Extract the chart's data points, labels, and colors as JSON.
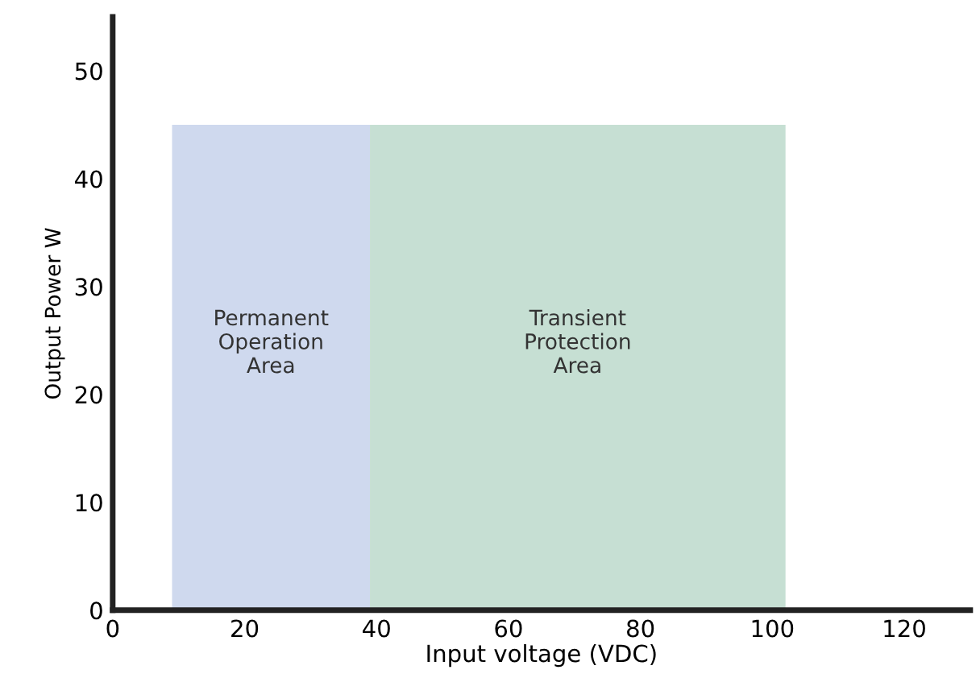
{
  "chart_data": {
    "type": "area",
    "xlabel": "Input voltage (VDC)",
    "ylabel": "Output Power W",
    "xlim": [
      0,
      130
    ],
    "xticks": [
      0,
      20,
      40,
      60,
      80,
      100,
      120
    ],
    "ylim": [
      0,
      55
    ],
    "yticks": [
      0,
      10,
      20,
      30,
      40,
      50
    ],
    "grid": false,
    "legend": false,
    "series": [
      {
        "name": "Permanent\nOperation\nArea",
        "color": "#cfd9ee",
        "x": [
          9,
          39
        ],
        "values": [
          45,
          45
        ]
      },
      {
        "name": "Transient\nProtection\nArea",
        "color": "#c6dfd3",
        "x": [
          39,
          102
        ],
        "values": [
          45,
          45
        ]
      }
    ]
  }
}
